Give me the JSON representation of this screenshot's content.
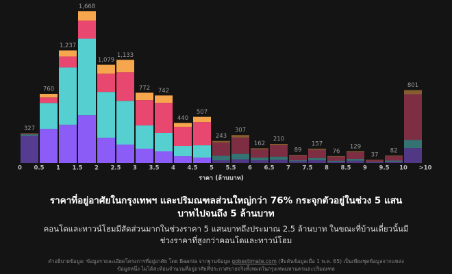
{
  "chart_data": {
    "type": "stacked_histogram",
    "xlabel": "ราคา (ล้านบาท)",
    "xlim": [
      0,
      10.5
    ],
    "ylim": [
      0,
      1700
    ],
    "xticks": [
      0,
      0.5,
      1,
      1.5,
      2,
      2.5,
      3,
      3.5,
      4,
      4.5,
      5,
      5.5,
      6,
      6.5,
      7,
      7.5,
      8,
      8.5,
      9,
      9.5,
      10,
      {
        "value": 10.5,
        "label": ">10"
      }
    ],
    "series": [
      {
        "color": "#8b5cf6",
        "values": [
          300,
          375,
          420,
          525,
          278,
          203,
          158,
          128,
          75,
          60,
          30,
          40,
          30,
          35,
          20,
          30,
          15,
          25,
          10,
          15,
          165
        ]
      },
      {
        "color": "#56cfd0",
        "values": [
          15,
          285,
          630,
          840,
          503,
          480,
          255,
          203,
          113,
          135,
          50,
          60,
          30,
          35,
          10,
          25,
          10,
          20,
          5,
          12,
          90
        ]
      },
      {
        "color": "#e8476f",
        "values": [
          7,
          60,
          120,
          200,
          200,
          315,
          278,
          330,
          210,
          255,
          145,
          180,
          90,
          125,
          52,
          90,
          45,
          74,
          18,
          48,
          500
        ]
      },
      {
        "color": "#f6a64c",
        "values": [
          5,
          40,
          67,
          103,
          98,
          135,
          81,
          81,
          42,
          57,
          18,
          27,
          12,
          15,
          7,
          12,
          6,
          10,
          4,
          7,
          46
        ]
      }
    ],
    "totals": [
      327,
      760,
      1237,
      1668,
      1079,
      1133,
      772,
      742,
      440,
      507,
      243,
      307,
      162,
      210,
      89,
      157,
      76,
      129,
      37,
      82,
      801
    ],
    "total_labels": [
      "327",
      "760",
      "1,237",
      "1,668",
      "1,079",
      "1,133",
      "772",
      "742",
      "440",
      "507",
      "243",
      "307",
      "162",
      "210",
      "89",
      "157",
      "76",
      "129",
      "37",
      "82",
      "801"
    ],
    "title": "ราคาที่อยู่อาศัยในกรุงเทพฯ และปริมณฑลส่วนใหญ่กว่า 76% กระจุกตัวอยู่ในช่วง 5 แสนบาทไปจนถึง 5 ล้านบาท",
    "subtitle": "คอนโดและทาวน์โฮมมีสัดส่วนมากในช่วงราคา 5 แสนบาทถึงประมาณ 2.5 ล้านบาท ในขณะที่บ้านเดี่ยวนั้นมีช่วงราคาที่สูงกว่าคอนโดและทาวน์โฮม",
    "footnote": [
      "คำอธิบายข้อมูล: ข้อมูลรายละเอียดโครงการที่อยู่อาศัย โดย Baania จากฐานข้อมูล ",
      "gobestimate.com",
      " (สืบค้นข้อมูลเมื่อ 1 พ.ค. 65) เป็นเพียงชุดข้อมูลจากแหล่งข้อมูลหนึ่ง ไม่ได้สะท้อนจำนวนที่อยู่อาศัยที่ประกาศขายจริงทั้งหมดในกรุงเทพมหานครและปริมณฑล"
    ]
  }
}
